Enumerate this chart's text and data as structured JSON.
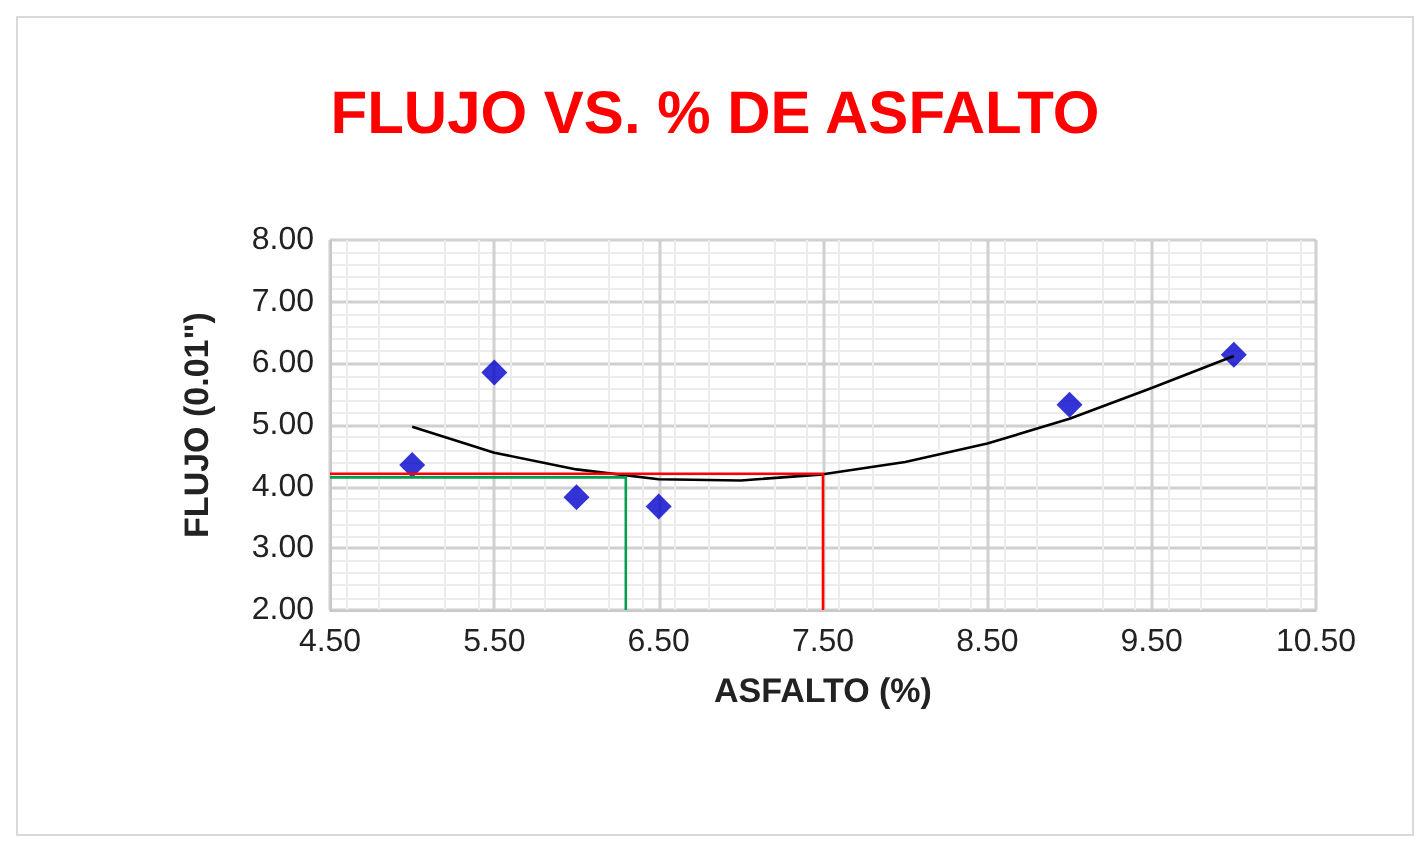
{
  "chart_data": {
    "type": "scatter",
    "title": "FLUJO VS. % DE ASFALTO",
    "xlabel": "ASFALTO (%)",
    "ylabel": "FLUJO (0.01\")",
    "marker": "diamond",
    "grid": true,
    "xlim": [
      4.5,
      10.5
    ],
    "xticks": [
      {
        "value": 4.5,
        "label": "4.50"
      },
      {
        "value": 5.5,
        "label": "5.50"
      },
      {
        "value": 6.5,
        "label": "6.50"
      },
      {
        "value": 7.5,
        "label": "7.50"
      },
      {
        "value": 8.5,
        "label": "8.50"
      },
      {
        "value": 9.5,
        "label": "9.50"
      },
      {
        "value": 10.5,
        "label": "10.50"
      }
    ],
    "ylim": [
      2,
      8
    ],
    "yticks": [
      {
        "value": 2,
        "label": "2.00"
      },
      {
        "value": 3,
        "label": "3.00"
      },
      {
        "value": 4,
        "label": "4.00"
      },
      {
        "value": 5,
        "label": "5.00"
      },
      {
        "value": 6,
        "label": "6.00"
      },
      {
        "value": 7,
        "label": "7.00"
      },
      {
        "value": 8,
        "label": "8.00"
      }
    ],
    "series": [
      {
        "color": "#0000cc",
        "x": [
          5.0,
          5.5,
          6.0,
          6.5,
          9.0,
          10.0
        ],
        "values": [
          4.35,
          5.85,
          3.83,
          3.68,
          5.33,
          6.14
        ]
      },
      {
        "type": "line",
        "color": "#000000",
        "marker": "none",
        "line_style": "solid",
        "x": [
          5.0,
          5.5,
          6.0,
          6.5,
          7.0,
          7.5,
          8.0,
          8.5,
          9.0,
          9.5,
          10.0
        ],
        "values": [
          4.97,
          4.55,
          4.28,
          4.12,
          4.1,
          4.2,
          4.4,
          4.7,
          5.1,
          5.6,
          6.12
        ]
      },
      {
        "type": "line",
        "color": "#00a050",
        "marker": "none",
        "line_style": "solid",
        "x": [
          4.5,
          6.3,
          6.3
        ],
        "values": [
          4.15,
          4.15,
          2.0
        ]
      },
      {
        "type": "line",
        "color": "#ff0000",
        "marker": "none",
        "line_style": "solid",
        "x": [
          4.5,
          7.5,
          7.5
        ],
        "values": [
          4.21,
          4.21,
          2.0
        ]
      }
    ]
  }
}
